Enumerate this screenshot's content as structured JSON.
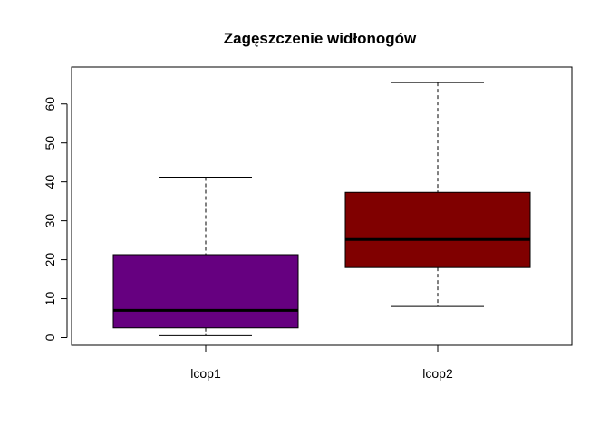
{
  "chart_data": {
    "type": "boxplot",
    "title": "Zagęszczenie widłonogów",
    "xlabel": "",
    "ylabel": "",
    "ylim": [
      0,
      65
    ],
    "y_ticks": [
      0,
      10,
      20,
      30,
      40,
      50,
      60
    ],
    "categories": [
      "lcop1",
      "lcop2"
    ],
    "boxes": [
      {
        "category": "lcop1",
        "min": 0.5,
        "q1": 2.5,
        "median": 7.0,
        "q3": 21.3,
        "max": 41.2,
        "color": "#660080"
      },
      {
        "category": "lcop2",
        "min": 8.0,
        "q1": 18.0,
        "median": 25.2,
        "q3": 37.3,
        "max": 65.5,
        "color": "#800000"
      }
    ]
  }
}
